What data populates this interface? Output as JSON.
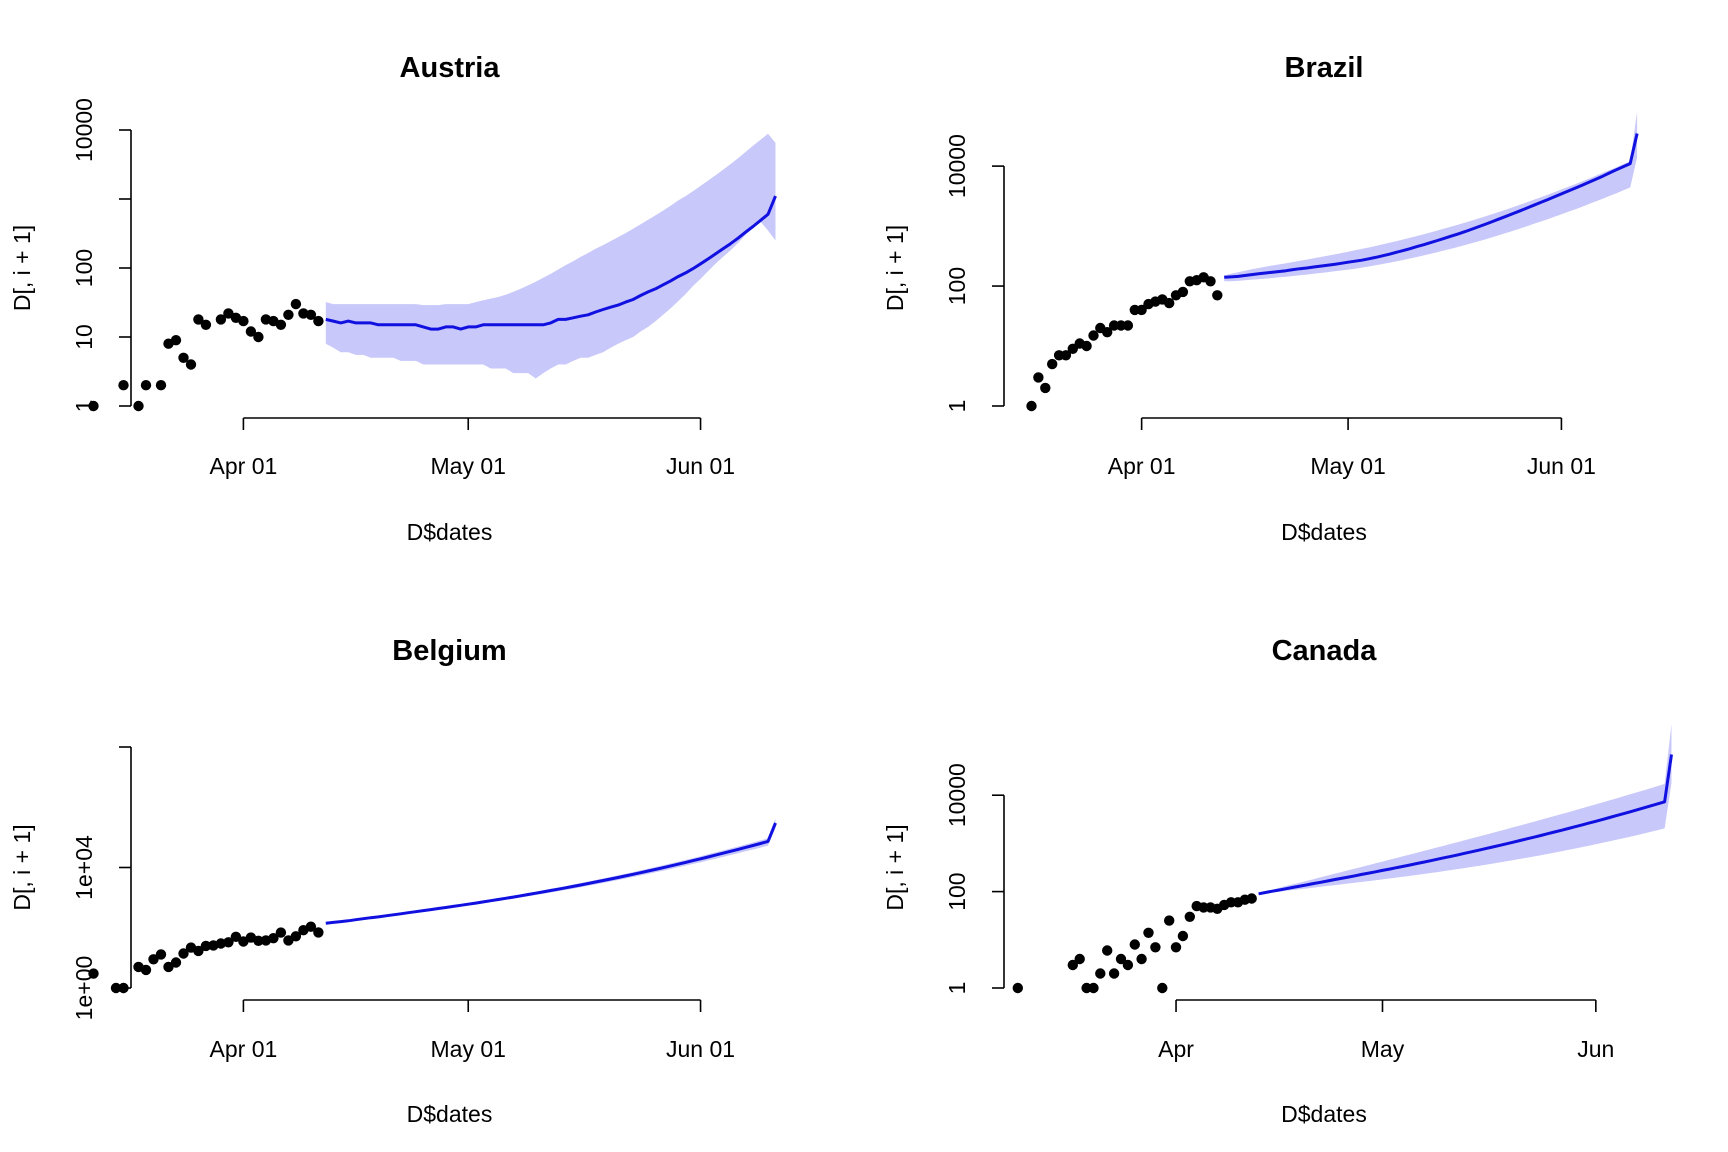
{
  "chart_data": [
    {
      "type": "scatter",
      "title": "Austria",
      "xlabel": "D$dates",
      "ylabel": "D[, i + 1]",
      "log_y": true,
      "x_axis": {
        "start": "2020-03-17",
        "end": "2020-06-10",
        "ticks": [
          {
            "date": "2020-04-01",
            "label": "Apr 01"
          },
          {
            "date": "2020-05-01",
            "label": "May 01"
          },
          {
            "date": "2020-06-01",
            "label": "Jun 01"
          }
        ]
      },
      "y_axis": {
        "min": 1,
        "max": 10000,
        "ticks": [
          1,
          10,
          100,
          1000,
          10000
        ],
        "tick_labels": [
          "1",
          "10",
          "100",
          "",
          "10000"
        ]
      },
      "observed": {
        "start_date": "2020-03-12",
        "values": [
          1,
          null,
          null,
          null,
          2,
          null,
          1,
          2,
          null,
          2,
          8,
          9,
          5,
          4,
          18,
          15,
          null,
          18,
          22,
          19,
          17,
          12,
          10,
          18,
          17,
          15,
          21,
          30,
          22,
          21,
          17
        ]
      },
      "forecast": {
        "start_date": "2020-04-12",
        "mean": [
          18,
          17,
          16,
          17,
          16,
          16,
          16,
          15,
          15,
          15,
          15,
          15,
          15,
          14,
          13,
          13,
          14,
          14,
          13,
          14,
          14,
          15,
          15,
          15,
          15,
          15,
          15,
          15,
          15,
          15,
          16,
          18,
          18,
          19,
          20,
          21,
          23,
          25,
          27,
          29,
          32,
          35,
          40,
          45,
          50,
          57,
          65,
          75,
          85,
          98,
          115,
          135,
          160,
          190,
          225,
          270,
          330,
          400,
          490,
          600,
          1100
        ],
        "lower": [
          8,
          7,
          6,
          6,
          5.5,
          5.5,
          5,
          5,
          5,
          5,
          4.5,
          4.5,
          4.5,
          4,
          4,
          4,
          4,
          4,
          4,
          4,
          4,
          4,
          3.5,
          3.5,
          3.5,
          3,
          3,
          3,
          2.5,
          3,
          3.5,
          4,
          4,
          4.5,
          5,
          5,
          5.5,
          6,
          7,
          8,
          9,
          10,
          12,
          14,
          17,
          21,
          26,
          33,
          42,
          55,
          70,
          90,
          115,
          145,
          180,
          230,
          300,
          380,
          470,
          350,
          250
        ],
        "upper": [
          32,
          30,
          30,
          30,
          30,
          30,
          30,
          30,
          30,
          30,
          30,
          30,
          30,
          29,
          29,
          29,
          30,
          30,
          30,
          30,
          32,
          34,
          36,
          38,
          41,
          45,
          50,
          56,
          63,
          72,
          82,
          95,
          110,
          125,
          145,
          165,
          190,
          215,
          245,
          280,
          320,
          370,
          430,
          500,
          580,
          680,
          800,
          950,
          1100,
          1300,
          1550,
          1850,
          2200,
          2650,
          3200,
          3900,
          4800,
          5900,
          7200,
          8800,
          6500
        ]
      }
    },
    {
      "type": "scatter",
      "title": "Brazil",
      "xlabel": "D$dates",
      "ylabel": "D[, i + 1]",
      "log_y": true,
      "x_axis": {
        "start": "2020-03-12",
        "end": "2020-06-13",
        "ticks": [
          {
            "date": "2020-04-01",
            "label": "Apr 01"
          },
          {
            "date": "2020-05-01",
            "label": "May 01"
          },
          {
            "date": "2020-06-01",
            "label": "Jun 01"
          }
        ]
      },
      "y_axis": {
        "min": 1,
        "max": 40000,
        "ticks": [
          1,
          100,
          10000
        ],
        "tick_labels": [
          "1",
          "100",
          "10000"
        ]
      },
      "observed": {
        "start_date": "2020-03-16",
        "values": [
          1,
          3,
          2,
          5,
          7,
          7,
          9,
          11,
          10,
          15,
          20,
          17,
          22,
          22,
          22,
          40,
          40,
          50,
          55,
          60,
          52,
          70,
          80,
          120,
          125,
          140,
          120,
          70
        ]
      },
      "forecast": {
        "start_date": "2020-04-13",
        "mean": [
          140,
          142,
          145,
          150,
          155,
          160,
          165,
          170,
          175,
          180,
          188,
          195,
          200,
          208,
          215,
          222,
          230,
          240,
          250,
          260,
          270,
          285,
          300,
          320,
          340,
          365,
          390,
          420,
          455,
          490,
          530,
          575,
          625,
          680,
          740,
          810,
          890,
          980,
          1080,
          1190,
          1320,
          1460,
          1620,
          1800,
          2000,
          2230,
          2480,
          2760,
          3080,
          3440,
          3850,
          4300,
          4800,
          5400,
          6050,
          6800,
          7700,
          8700,
          9800,
          11000,
          35000
        ],
        "lower": [
          120,
          120,
          122,
          125,
          128,
          130,
          133,
          136,
          140,
          143,
          147,
          151,
          155,
          160,
          165,
          170,
          176,
          182,
          188,
          195,
          203,
          212,
          222,
          233,
          245,
          258,
          272,
          288,
          305,
          324,
          345,
          368,
          393,
          420,
          450,
          483,
          520,
          560,
          605,
          655,
          710,
          770,
          838,
          912,
          995,
          1090,
          1190,
          1300,
          1430,
          1570,
          1730,
          1900,
          2100,
          2330,
          2580,
          2860,
          3180,
          3540,
          3950,
          4400,
          14000
        ],
        "upper": [
          150,
          160,
          170,
          180,
          190,
          200,
          210,
          220,
          230,
          240,
          252,
          264,
          276,
          290,
          305,
          320,
          336,
          354,
          373,
          394,
          416,
          440,
          466,
          495,
          526,
          560,
          597,
          638,
          683,
          732,
          786,
          845,
          910,
          981,
          1060,
          1145,
          1240,
          1345,
          1460,
          1590,
          1730,
          1890,
          2070,
          2270,
          2490,
          2740,
          3020,
          3330,
          3680,
          4070,
          4510,
          5000,
          5560,
          6190,
          6900,
          7700,
          8600,
          9600,
          10800,
          12100,
          80000
        ]
      }
    },
    {
      "type": "scatter",
      "title": "Belgium",
      "xlabel": "D$dates",
      "ylabel": "D[, i + 1]",
      "log_y": true,
      "x_axis": {
        "start": "2020-03-17",
        "end": "2020-06-10",
        "ticks": [
          {
            "date": "2020-04-01",
            "label": "Apr 01"
          },
          {
            "date": "2020-05-01",
            "label": "May 01"
          },
          {
            "date": "2020-06-01",
            "label": "Jun 01"
          }
        ]
      },
      "y_axis": {
        "min": 1,
        "max": 100000000,
        "ticks": [
          1,
          10000,
          100000000
        ],
        "tick_labels": [
          "1e+00",
          "1e+04",
          ""
        ]
      },
      "observed": {
        "start_date": "2020-03-12",
        "values": [
          3,
          null,
          null,
          1,
          1,
          null,
          5,
          4,
          9,
          13,
          5,
          7,
          14,
          22,
          17,
          25,
          26,
          30,
          33,
          50,
          35,
          47,
          37,
          38,
          45,
          69,
          38,
          52,
          83,
          108,
          70
        ]
      },
      "forecast": {
        "start_date": "2020-04-12",
        "mean": [
          140,
          150,
          160,
          170,
          185,
          200,
          215,
          230,
          250,
          270,
          290,
          315,
          340,
          370,
          400,
          435,
          470,
          510,
          555,
          605,
          660,
          720,
          790,
          865,
          950,
          1040,
          1150,
          1270,
          1400,
          1550,
          1720,
          1910,
          2120,
          2360,
          2630,
          2940,
          3290,
          3690,
          4150,
          4670,
          5270,
          5950,
          6740,
          7640,
          8680,
          9880,
          11270,
          12870,
          14730,
          16890,
          19400,
          22320,
          25730,
          29720,
          34400,
          39890,
          46340,
          53920,
          62850,
          73400,
          300000
        ],
        "lower": [
          135,
          144,
          153,
          162,
          175,
          189,
          203,
          217,
          234,
          252,
          270,
          292,
          314,
          340,
          367,
          397,
          429,
          463,
          502,
          545,
          593,
          644,
          703,
          767,
          838,
          915,
          1005,
          1105,
          1214,
          1338,
          1478,
          1634,
          1806,
          2000,
          2217,
          2465,
          2745,
          3063,
          3425,
          3836,
          4305,
          4838,
          5450,
          6150,
          6950,
          7860,
          8920,
          10130,
          11530,
          13140,
          15010,
          17150,
          19650,
          22550,
          25920,
          29840,
          34400,
          39720,
          45930,
          53180,
          210000
        ],
        "upper": [
          145,
          156,
          167,
          178,
          195,
          211,
          227,
          243,
          266,
          288,
          310,
          338,
          366,
          400,
          433,
          473,
          511,
          557,
          608,
          665,
          727,
          796,
          877,
          963,
          1062,
          1165,
          1295,
          1435,
          1586,
          1762,
          1962,
          2186,
          2434,
          2720,
          3043,
          3415,
          3835,
          4317,
          4872,
          5498,
          6225,
          7048,
          8010,
          9110,
          10390,
          11860,
          13580,
          15560,
          17880,
          20570,
          23710,
          27370,
          31670,
          36720,
          42680,
          49680,
          57950,
          67700,
          79240,
          92920,
          420000
        ]
      }
    },
    {
      "type": "scatter",
      "title": "Canada",
      "xlabel": "D$dates",
      "ylabel": "D[, i + 1]",
      "log_y": true,
      "x_axis": {
        "start": "2020-03-07",
        "end": "2020-06-08",
        "ticks": [
          {
            "date": "2020-04-01",
            "label": "Apr"
          },
          {
            "date": "2020-05-01",
            "label": "May"
          },
          {
            "date": "2020-06-01",
            "label": "Jun"
          }
        ]
      },
      "y_axis": {
        "min": 1,
        "max": 100000,
        "ticks": [
          1,
          100,
          10000
        ],
        "tick_labels": [
          "1",
          "100",
          "10000"
        ]
      },
      "observed": {
        "start_date": "2020-03-09",
        "values": [
          1,
          null,
          null,
          null,
          null,
          null,
          null,
          null,
          3,
          4,
          1,
          1,
          2,
          6,
          2,
          4,
          3,
          8,
          4,
          14,
          7,
          1,
          25,
          7,
          12,
          30,
          50,
          47,
          47,
          44,
          53,
          60,
          60,
          68,
          72
        ]
      },
      "forecast": {
        "start_date": "2020-04-13",
        "mean": [
          90,
          96,
          102,
          108,
          115,
          122,
          130,
          138,
          147,
          156,
          166,
          177,
          188,
          200,
          213,
          227,
          242,
          258,
          275,
          293,
          313,
          334,
          357,
          382,
          409,
          438,
          470,
          504,
          541,
          581,
          625,
          672,
          724,
          780,
          841,
          908,
          981,
          1061,
          1148,
          1243,
          1347,
          1461,
          1586,
          1723,
          1873,
          2038,
          2219,
          2419,
          2639,
          2881,
          3148,
          3443,
          3769,
          4130,
          4530,
          4974,
          5466,
          6013,
          6621,
          7298,
          70000
        ],
        "lower": [
          88,
          92,
          96,
          100,
          104,
          108,
          112,
          116,
          121,
          126,
          131,
          136,
          141,
          147,
          153,
          159,
          165,
          172,
          179,
          187,
          195,
          203,
          212,
          222,
          232,
          243,
          254,
          267,
          280,
          294,
          309,
          325,
          342,
          361,
          381,
          402,
          425,
          450,
          476,
          505,
          536,
          569,
          605,
          644,
          686,
          732,
          782,
          836,
          895,
          959,
          1029,
          1105,
          1188,
          1279,
          1379,
          1488,
          1608,
          1740,
          1885,
          2044,
          18000
        ],
        "upper": [
          92,
          101,
          110,
          120,
          131,
          142,
          154,
          167,
          182,
          198,
          215,
          234,
          254,
          276,
          300,
          326,
          355,
          386,
          420,
          457,
          497,
          541,
          589,
          641,
          698,
          760,
          828,
          902,
          983,
          1071,
          1168,
          1273,
          1389,
          1515,
          1653,
          1805,
          1971,
          2153,
          2353,
          2573,
          2815,
          3081,
          3374,
          3696,
          4052,
          4443,
          4875,
          5351,
          5877,
          6458,
          7100,
          7810,
          8597,
          9468,
          10436,
          11512,
          12710,
          14044,
          15533,
          17197,
          300000
        ]
      }
    }
  ],
  "style": {
    "band_color": "#c8c8fa",
    "line_color": "#1010e0",
    "point_color": "#000000"
  }
}
